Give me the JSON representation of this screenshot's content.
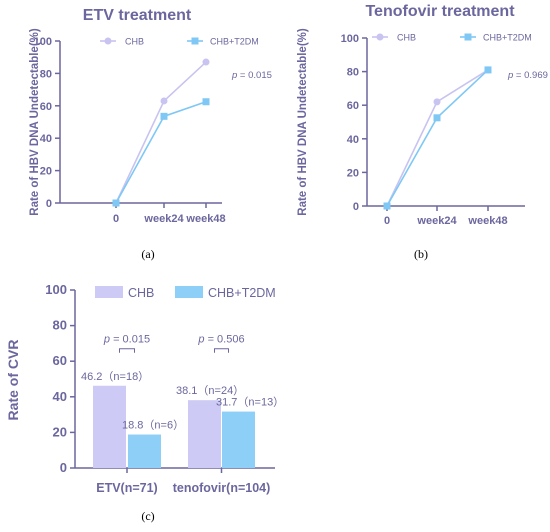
{
  "chart_data": [
    {
      "panel_label": "(a)",
      "type": "line",
      "title": "ETV treatment",
      "ylabel": "Rate of HBV DNA Undetectable(%)",
      "xlabel": "",
      "categories": [
        "0",
        "week24",
        "week48"
      ],
      "ylim": [
        0,
        100
      ],
      "yticks": [
        "0",
        "20",
        "40",
        "60",
        "80",
        "100"
      ],
      "series": [
        {
          "name": "CHB",
          "marker": "circle",
          "color": "#c8c3f0",
          "values": [
            0,
            63,
            87
          ]
        },
        {
          "name": "CHB+T2DM",
          "marker": "square",
          "color": "#7fc8f5",
          "values": [
            0,
            53.5,
            62.5
          ]
        }
      ],
      "annotation": "p = 0.015",
      "legend": "top"
    },
    {
      "panel_label": "(b)",
      "type": "line",
      "title": "Tenofovir treatment",
      "ylabel": "Rate of HBV DNA Undetectable(%)",
      "xlabel": "",
      "categories": [
        "0",
        "week24",
        "week48"
      ],
      "ylim": [
        0,
        100
      ],
      "yticks": [
        "0",
        "20",
        "40",
        "60",
        "80",
        "100"
      ],
      "series": [
        {
          "name": "CHB",
          "marker": "circle",
          "color": "#c8c3f0",
          "values": [
            0,
            62,
            81
          ]
        },
        {
          "name": "CHB+T2DM",
          "marker": "square",
          "color": "#7fc8f5",
          "values": [
            0,
            52.5,
            81
          ]
        }
      ],
      "annotation": "p = 0.969",
      "legend": "top"
    },
    {
      "panel_label": "(c)",
      "type": "bar",
      "title": "",
      "ylabel": "Rate of CVR",
      "xlabel": "",
      "categories": [
        "ETV(n=71)",
        "tenofovir(n=104)"
      ],
      "ylim": [
        0,
        100
      ],
      "yticks": [
        "0",
        "20",
        "40",
        "60",
        "80",
        "100"
      ],
      "series": [
        {
          "name": "CHB",
          "color": "#cdcaf5",
          "values": [
            46.2,
            38.1
          ],
          "labels": [
            "46.2（n=18）",
            "38.1（n=24）"
          ]
        },
        {
          "name": "CHB+T2DM",
          "color": "#8ecff7",
          "values": [
            18.8,
            31.7
          ],
          "labels": [
            "18.8（n=6）",
            "31.7（n=13）"
          ]
        }
      ],
      "annotations": [
        "p = 0.015",
        "p = 0.506"
      ],
      "legend": "top"
    }
  ]
}
